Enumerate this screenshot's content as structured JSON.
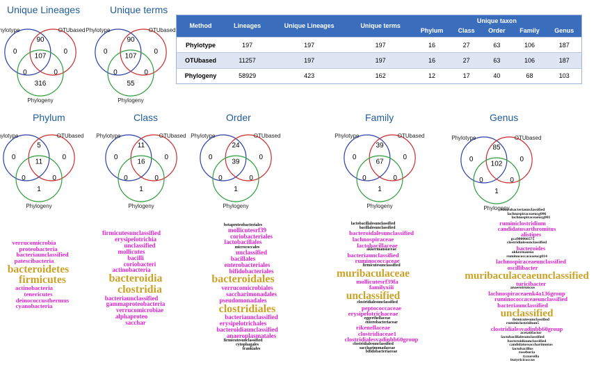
{
  "top_titles": {
    "lineages": "Unique Lineages",
    "terms": "Unique terms"
  },
  "venn_labels": {
    "a": "Phylotype",
    "b": "OTUbased",
    "c": "Phylogeny"
  },
  "venns": [
    {
      "id": "lineages",
      "title": "Unique Lineages",
      "a_only": "0",
      "b_only": "0",
      "c_only": "316",
      "ab": "90",
      "abc": "107",
      "ac": "0",
      "bc": "0"
    },
    {
      "id": "terms",
      "title": "Unique terms",
      "a_only": "0",
      "b_only": "0",
      "c_only": "55",
      "ab": "90",
      "abc": "107",
      "ac": "0",
      "bc": "0"
    },
    {
      "id": "phylum",
      "title": "Phylum",
      "a_only": "0",
      "b_only": "0",
      "c_only": "1",
      "ab": "5",
      "abc": "11",
      "ac": "0",
      "bc": "0"
    },
    {
      "id": "class",
      "title": "Class",
      "a_only": "0",
      "b_only": "0",
      "c_only": "1",
      "ab": "11",
      "abc": "16",
      "ac": "0",
      "bc": "0"
    },
    {
      "id": "order",
      "title": "Order",
      "a_only": "0",
      "b_only": "0",
      "c_only": "1",
      "ab": "24",
      "abc": "39",
      "ac": "0",
      "bc": "0"
    },
    {
      "id": "family",
      "title": "Family",
      "a_only": "0",
      "b_only": "0",
      "c_only": "1",
      "ab": "39",
      "abc": "67",
      "ac": "0",
      "bc": "0"
    },
    {
      "id": "genus",
      "title": "Genus",
      "a_only": "0",
      "b_only": "0",
      "c_only": "1",
      "ab": "85",
      "abc": "102",
      "ac": "0",
      "bc": "0"
    }
  ],
  "table": {
    "headers": [
      "Method",
      "Lineages",
      "Unique Lineages",
      "Unique terms",
      "Phylum",
      "Class",
      "Order",
      "Family",
      "Genus"
    ],
    "group_header": "Unique taxon",
    "rows": [
      [
        "Phylotype",
        "197",
        "197",
        "197",
        "16",
        "27",
        "63",
        "106",
        "187"
      ],
      [
        "OTUbased",
        "11257",
        "197",
        "197",
        "16",
        "27",
        "63",
        "106",
        "187"
      ],
      [
        "Phylogeny",
        "58929",
        "423",
        "162",
        "12",
        "17",
        "40",
        "68",
        "103"
      ]
    ]
  },
  "colors": {
    "title": "#1f5c99",
    "phylotype_circle": "#2b3fa8",
    "otubased_circle": "#cc2b2b",
    "phylogeny_circle": "#2e9e3a",
    "table_header": "#3a6ebd",
    "cloud_gold": "#c9a227",
    "cloud_magenta": "#e020d0",
    "cloud_black": "#111111"
  },
  "clouds": {
    "phylum": [
      {
        "t": "verrucomicrobia",
        "c": "magenta"
      },
      {
        "t": "proteobacteria",
        "c": "magenta"
      },
      {
        "t": "bacteriaunclassified",
        "c": "magenta"
      },
      {
        "t": "patescibacteria",
        "c": "magenta"
      },
      {
        "t": "bacteroidetes",
        "c": "gold"
      },
      {
        "t": "firmicutes",
        "c": "gold"
      },
      {
        "t": "actinobacteria",
        "c": "magenta"
      },
      {
        "t": "tenericutes",
        "c": "magenta"
      },
      {
        "t": "deinococcusthermus",
        "c": "magenta"
      },
      {
        "t": "cyanobacteria",
        "c": "magenta"
      }
    ],
    "class": [
      {
        "t": "firmicutesunclassified",
        "c": "magenta"
      },
      {
        "t": "erysipelotrichia",
        "c": "magenta"
      },
      {
        "t": "unclassified",
        "c": "magenta"
      },
      {
        "t": "mollicutes",
        "c": "magenta"
      },
      {
        "t": "bacilli",
        "c": "magenta"
      },
      {
        "t": "coriobacteri",
        "c": "magenta"
      },
      {
        "t": "actinobacteria",
        "c": "magenta"
      },
      {
        "t": "bacteroidia",
        "c": "gold"
      },
      {
        "t": "clostridia",
        "c": "gold"
      },
      {
        "t": "bacteriaunclassified",
        "c": "magenta"
      },
      {
        "t": "gammaproteobacteria",
        "c": "magenta"
      },
      {
        "t": "verrucomicrobiae",
        "c": "magenta"
      },
      {
        "t": "alphaproteo",
        "c": "magenta"
      },
      {
        "t": "sacchar",
        "c": "magenta"
      }
    ],
    "order": [
      {
        "t": "betaproteobacteriales",
        "c": "black"
      },
      {
        "t": "mollicutesrf39",
        "c": "magenta"
      },
      {
        "t": "coriobacteriales",
        "c": "magenta"
      },
      {
        "t": "lactobacillales",
        "c": "magenta"
      },
      {
        "t": "micrococcales",
        "c": "black"
      },
      {
        "t": "unclassified",
        "c": "magenta"
      },
      {
        "t": "bacillales",
        "c": "magenta"
      },
      {
        "t": "enterobacteriales",
        "c": "magenta"
      },
      {
        "t": "bifidobacteriales",
        "c": "magenta"
      },
      {
        "t": "bacteroidales",
        "c": "gold"
      },
      {
        "t": "verrucomicrobiales",
        "c": "magenta"
      },
      {
        "t": "saccharimonadales",
        "c": "magenta"
      },
      {
        "t": "pseudomonadales",
        "c": "magenta"
      },
      {
        "t": "clostridiales",
        "c": "gold"
      },
      {
        "t": "bacteriaunclassified",
        "c": "magenta"
      },
      {
        "t": "erysipelotrichales",
        "c": "magenta"
      },
      {
        "t": "bacteroidiaunclassified",
        "c": "magenta"
      },
      {
        "t": "anaeroplasmatales",
        "c": "magenta"
      },
      {
        "t": "firmicutesunclassified",
        "c": "black"
      },
      {
        "t": "cytophagales",
        "c": "black"
      },
      {
        "t": "frankiales",
        "c": "black"
      }
    ],
    "family": [
      {
        "t": "lactobacillalesunclassified",
        "c": "black"
      },
      {
        "t": "bacillalesunclassified",
        "c": "black"
      },
      {
        "t": "bacteroidalesunclassified",
        "c": "magenta"
      },
      {
        "t": "lachnospiraceae",
        "c": "magenta"
      },
      {
        "t": "lactobacillaceae",
        "c": "magenta"
      },
      {
        "t": "akkermansiaceae",
        "c": "black"
      },
      {
        "t": "bacteriaunclassified",
        "c": "magenta"
      },
      {
        "t": "ruminococcaceae",
        "c": "magenta"
      },
      {
        "t": "firmicutesunclassified",
        "c": "black"
      },
      {
        "t": "muribaculaceae",
        "c": "gold"
      },
      {
        "t": "mollicutesrf39fa",
        "c": "magenta"
      },
      {
        "t": "familyxiii",
        "c": "magenta"
      },
      {
        "t": "unclassified",
        "c": "gold"
      },
      {
        "t": "clostridialesunclassified",
        "c": "black"
      },
      {
        "t": "peptococcaceae",
        "c": "magenta"
      },
      {
        "t": "erysipelotrichaceae",
        "c": "magenta"
      },
      {
        "t": "eggerthellaceae",
        "c": "black"
      },
      {
        "t": "enterobacteriaceae",
        "c": "black"
      },
      {
        "t": "rikenellaceae",
        "c": "magenta"
      },
      {
        "t": "clostridiaceae1",
        "c": "magenta"
      },
      {
        "t": "clostridialesvadinbb60group",
        "c": "magenta"
      },
      {
        "t": "clostridialesunclassified",
        "c": "black"
      },
      {
        "t": "saccharimonadaceae",
        "c": "black"
      },
      {
        "t": "bifidobacteriaceae",
        "c": "black"
      }
    ],
    "genus": [
      {
        "t": "enterobacteriaunclassified",
        "c": "black"
      },
      {
        "t": "lachnospiraceaeucg006",
        "c": "black"
      },
      {
        "t": "lachnospiraceaeucg001",
        "c": "black"
      },
      {
        "t": "ruminiclostridium",
        "c": "magenta"
      },
      {
        "t": "candidatusarthromitus",
        "c": "magenta"
      },
      {
        "t": "alistipes",
        "c": "magenta"
      },
      {
        "t": "gca900066575",
        "c": "black"
      },
      {
        "t": "clostridialesunclassified",
        "c": "black"
      },
      {
        "t": "bacteroides",
        "c": "magenta"
      },
      {
        "t": "akkermansia",
        "c": "black"
      },
      {
        "t": "ruminococcaceaeucg014",
        "c": "black"
      },
      {
        "t": "lachnospiraceaeunclassified",
        "c": "magenta"
      },
      {
        "t": "oscillibacter",
        "c": "magenta"
      },
      {
        "t": "muribaculaceaeunclassified",
        "c": "gold"
      },
      {
        "t": "turicibacter",
        "c": "magenta"
      },
      {
        "t": "anaerotruncus",
        "c": "black"
      },
      {
        "t": "lachnospiraceaenk4a136group",
        "c": "magenta"
      },
      {
        "t": "ruminococcaceaeunclassified",
        "c": "magenta"
      },
      {
        "t": "bacteriaunclassified",
        "c": "magenta"
      },
      {
        "t": "unclassified",
        "c": "gold"
      },
      {
        "t": "firmicutesunclassified",
        "c": "black"
      },
      {
        "t": "ruminiclostridium5",
        "c": "black"
      },
      {
        "t": "clostridialesvadinbb60group",
        "c": "magenta"
      },
      {
        "t": "acetatifactor",
        "c": "black"
      },
      {
        "t": "lactobacillalesunclassified",
        "c": "black"
      },
      {
        "t": "bacteroidiaunclassified",
        "c": "black"
      },
      {
        "t": "candidatussaccharimonas",
        "c": "black"
      },
      {
        "t": "lactobacillus",
        "c": "black"
      },
      {
        "t": "roseburia",
        "c": "black"
      },
      {
        "t": "tyzzerella",
        "c": "black"
      },
      {
        "t": "butyricicoccus",
        "c": "black"
      }
    ]
  }
}
